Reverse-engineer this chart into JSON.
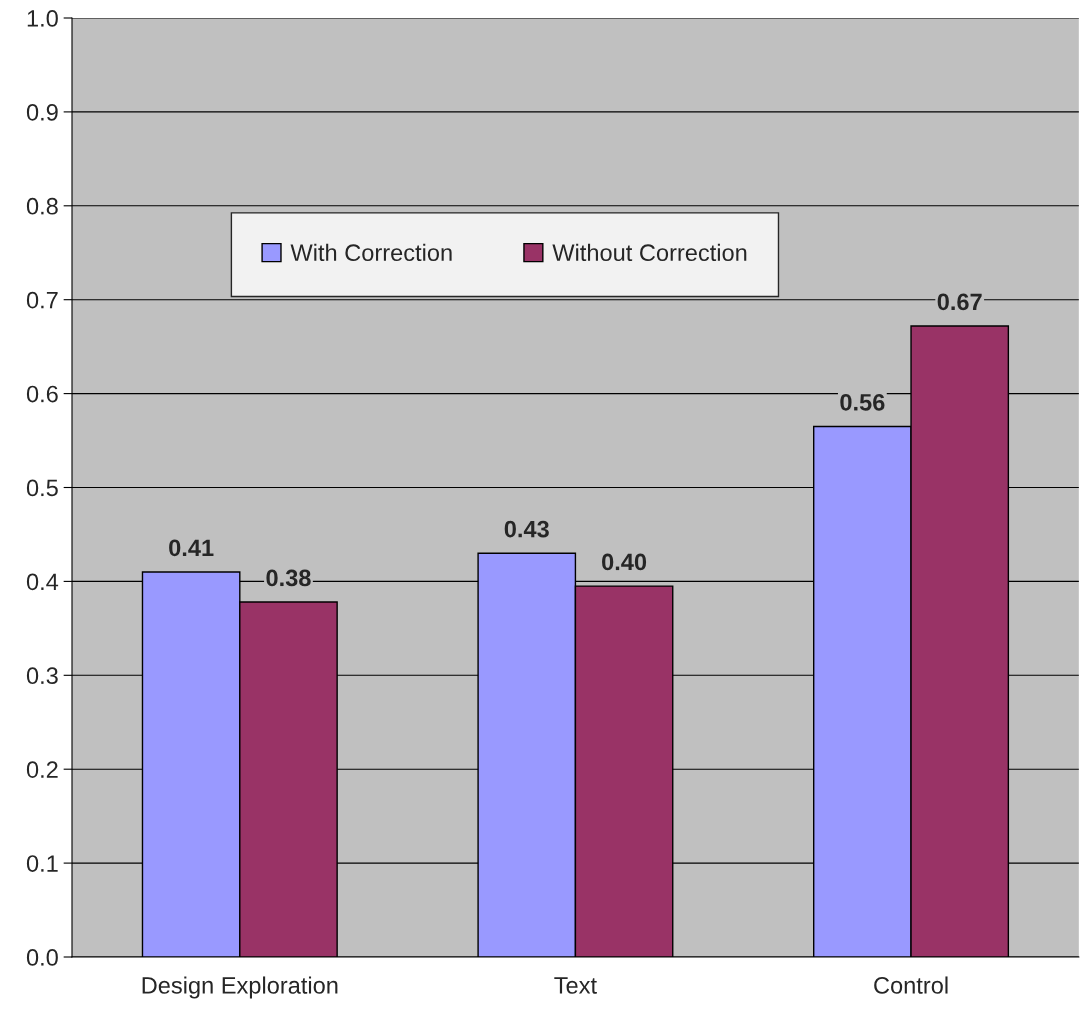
{
  "chart_data": {
    "type": "bar",
    "categories": [
      "Design Exploration",
      "Text",
      "Control"
    ],
    "series": [
      {
        "name": "With Correction",
        "color": "#9999ff",
        "values": [
          0.41,
          0.43,
          0.565
        ],
        "value_labels": [
          "0.41",
          "0.43",
          "0.56"
        ]
      },
      {
        "name": "Without Correction",
        "color": "#993366",
        "values": [
          0.378,
          0.395,
          0.672
        ],
        "value_labels": [
          "0.38",
          "0.40",
          "0.67"
        ]
      }
    ],
    "ylim": [
      0,
      1
    ],
    "yticks": [
      {
        "value": 0,
        "label": "0.0"
      },
      0.1,
      0.2,
      0.3,
      0.4,
      0.5,
      0.6,
      0.7,
      0.8,
      0.9,
      {
        "value": 1,
        "label": "1.0"
      }
    ],
    "grid": "y",
    "legend": "top"
  }
}
